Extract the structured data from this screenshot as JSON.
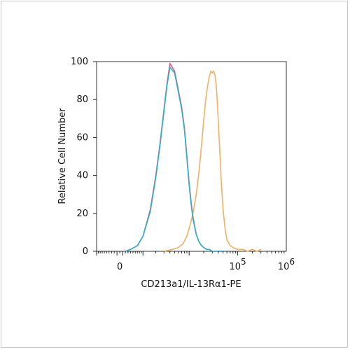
{
  "chart_data": {
    "type": "line",
    "title": "",
    "xlabel": "CD213a1/IL-13Rα1-PE",
    "ylabel": "Relative Cell Number",
    "x_scale": "biexponential",
    "xlim": [
      -1000,
      1000000
    ],
    "ylim": [
      0,
      100
    ],
    "y_ticks": [
      0,
      20,
      40,
      60,
      80,
      100
    ],
    "x_tick_labels": [
      {
        "value": 0,
        "base": "0",
        "exp": ""
      },
      {
        "value": 100000,
        "base": "10",
        "exp": "5"
      },
      {
        "value": 1000000,
        "base": "10",
        "exp": "6"
      }
    ],
    "grid": false,
    "legend": "none",
    "series": [
      {
        "color": "#e8567a",
        "x": [
          200,
          400,
          700,
          1000,
          1500,
          2000,
          2500,
          3000,
          3500,
          4000,
          5000,
          6000,
          7000,
          8000,
          9000,
          10000,
          11000,
          12000,
          14000,
          16000,
          18000,
          20000,
          23000,
          26000,
          30000,
          40000,
          60000
        ],
        "y": [
          0,
          1,
          3,
          8,
          22,
          40,
          58,
          75,
          89,
          99,
          95,
          85,
          76,
          65,
          50,
          36,
          26,
          18,
          9,
          5,
          3,
          2,
          1,
          1,
          0,
          0,
          0
        ]
      },
      {
        "color": "#f2b063",
        "x": [
          3000,
          4500,
          6000,
          7500,
          9000,
          10500,
          12000,
          14000,
          16000,
          18000,
          20000,
          22000,
          24000,
          26000,
          28000,
          30000,
          32000,
          34000,
          36000,
          38000,
          40000,
          43000,
          46000,
          50000,
          55000,
          60000,
          70000,
          80000,
          100000,
          130000,
          160000,
          200000,
          250000,
          300000
        ],
        "y": [
          0,
          1,
          2,
          4,
          8,
          14,
          20,
          30,
          42,
          56,
          69,
          80,
          87,
          92,
          95,
          94,
          95,
          93,
          88,
          79,
          68,
          52,
          36,
          22,
          12,
          6,
          3,
          2,
          1,
          1,
          0,
          1,
          0,
          1
        ]
      },
      {
        "color": "#2ab0c9",
        "x": [
          200,
          400,
          700,
          1000,
          1500,
          2000,
          2500,
          3000,
          3500,
          4000,
          5000,
          6000,
          7000,
          8000,
          9000,
          10000,
          11000,
          12000,
          14000,
          16000,
          18000,
          20000,
          23000,
          26000,
          30000,
          40000,
          60000
        ],
        "y": [
          0,
          1,
          3,
          8,
          21,
          39,
          57,
          74,
          88,
          97,
          94,
          84,
          75,
          64,
          49,
          35,
          25,
          17,
          9,
          5,
          3,
          2,
          1,
          1,
          0,
          0,
          0
        ]
      }
    ]
  }
}
